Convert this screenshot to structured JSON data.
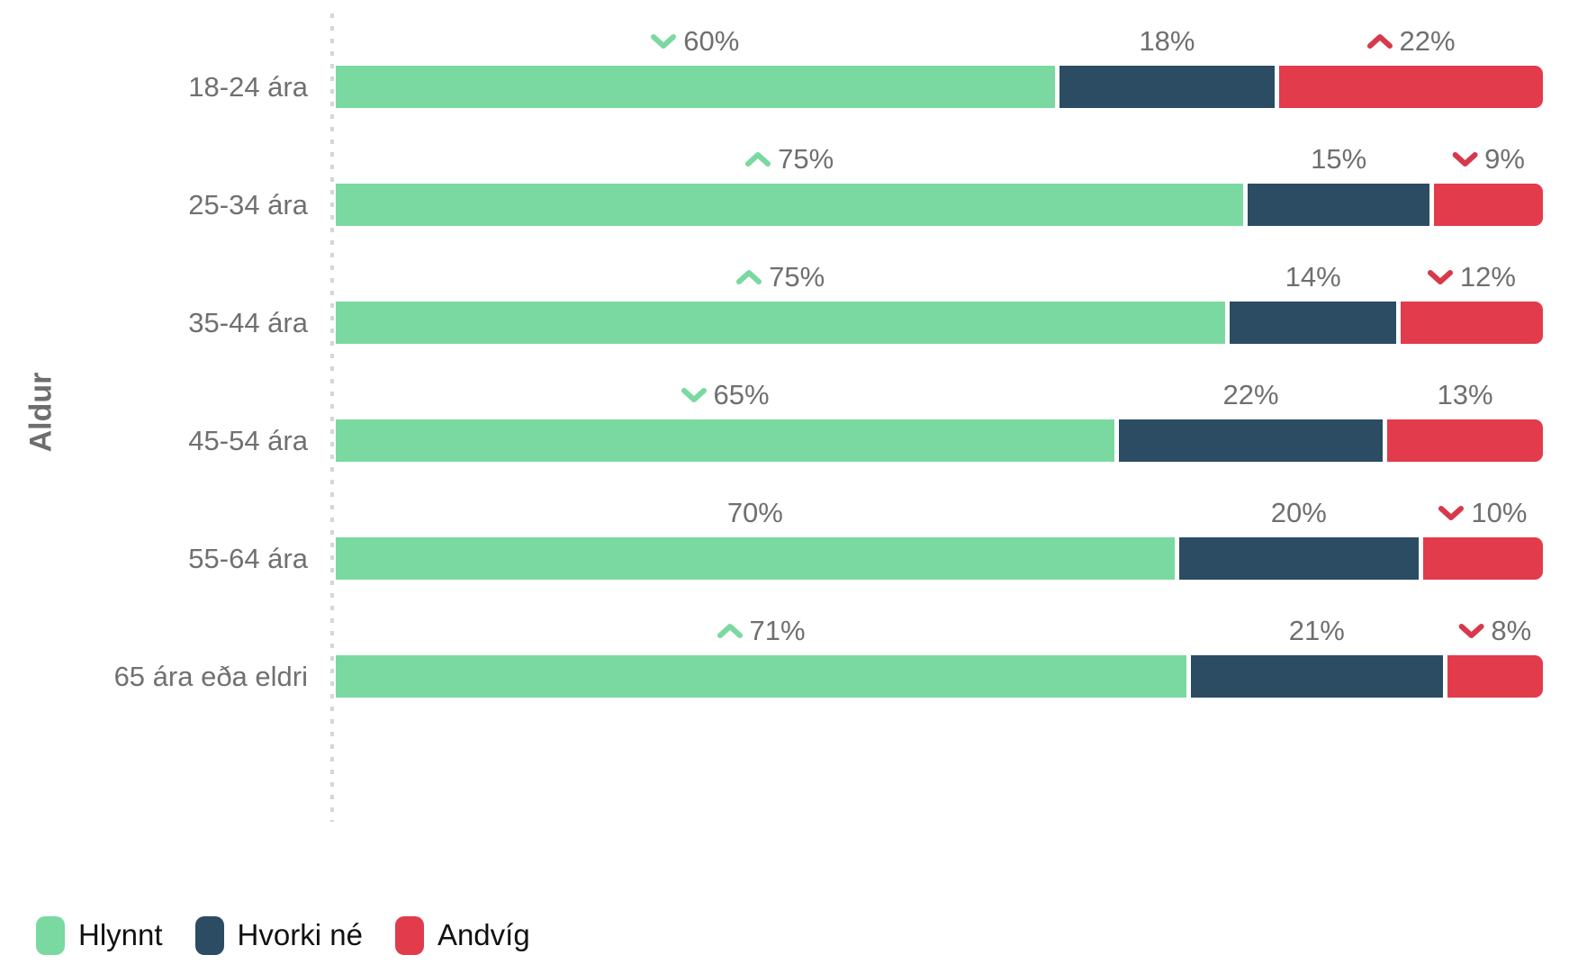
{
  "chart_data": {
    "type": "bar",
    "orientation": "horizontal",
    "stacked": true,
    "y_axis_title": "Aldur",
    "value_suffix": "%",
    "legend_position": "bottom",
    "grid": false,
    "categories": [
      "18-24 ára",
      "25-34 ára",
      "35-44 ára",
      "45-54 ára",
      "55-64 ára",
      "65 ára eða eldri"
    ],
    "series": [
      {
        "name": "Hlynnt",
        "color": "#7ad9a0",
        "trend_color": "#7ad9a0",
        "values": [
          60,
          75,
          75,
          65,
          70,
          71
        ],
        "trends": [
          "down",
          "up",
          "up",
          "down",
          null,
          "up"
        ]
      },
      {
        "name": "Hvorki né",
        "color": "#2b4c63",
        "trend_color": "#2b4c63",
        "values": [
          18,
          15,
          14,
          22,
          20,
          21
        ],
        "trends": [
          null,
          null,
          null,
          null,
          null,
          null
        ]
      },
      {
        "name": "Andvíg",
        "color": "#e23b4c",
        "trend_color": "#d8394a",
        "values": [
          22,
          9,
          12,
          13,
          10,
          8
        ],
        "trends": [
          "up",
          "down",
          "down",
          null,
          "down",
          "down"
        ]
      }
    ]
  },
  "colors": {
    "category_text": "#707070",
    "value_text": "#6f6f6f",
    "axis_title_text": "#6d6d6d",
    "axis_line": "#d6d6d6",
    "legend_text": "#111111",
    "background": "#ffffff"
  }
}
